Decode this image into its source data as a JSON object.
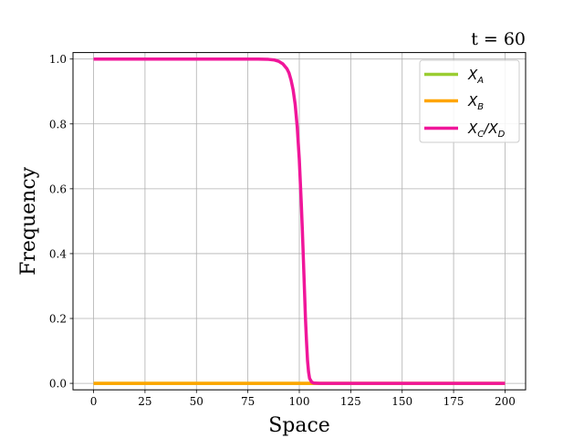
{
  "chart_data": {
    "type": "line",
    "title": "t = 60",
    "xlabel": "Space",
    "ylabel": "Frequency",
    "xlim": [
      -10,
      210
    ],
    "ylim": [
      -0.02,
      1.02
    ],
    "xticks": [
      0,
      25,
      50,
      75,
      100,
      125,
      150,
      175,
      200
    ],
    "yticks": [
      0.0,
      0.2,
      0.4,
      0.6,
      0.8,
      1.0
    ],
    "xtick_labels": [
      "0",
      "25",
      "50",
      "75",
      "100",
      "125",
      "150",
      "175",
      "200"
    ],
    "ytick_labels": [
      "0.0",
      "0.2",
      "0.4",
      "0.6",
      "0.8",
      "1.0"
    ],
    "grid": true,
    "legend_position": "top-right",
    "series": [
      {
        "name": "X_A",
        "legend_main": "X",
        "legend_sub": "A",
        "color": "#9ACD32",
        "x": [
          0,
          200
        ],
        "y": [
          0.0,
          0.0
        ]
      },
      {
        "name": "X_B",
        "legend_main": "X",
        "legend_sub": "B",
        "color": "#FFA500",
        "x": [
          0,
          200
        ],
        "y": [
          0.0,
          0.0
        ]
      },
      {
        "name": "X_C/X_D",
        "legend_main": "X",
        "legend_sub": "C",
        "legend_main2": "/X",
        "legend_sub2": "D",
        "color": "#F0169A",
        "x": [
          0,
          80,
          85,
          88,
          90,
          92,
          94,
          95,
          96,
          97,
          98,
          99,
          100,
          101,
          101.5,
          102,
          102.5,
          103,
          103.5,
          104,
          104.5,
          105,
          106,
          107,
          110,
          120,
          200
        ],
        "y": [
          1.0,
          1.0,
          0.999,
          0.997,
          0.993,
          0.985,
          0.97,
          0.957,
          0.935,
          0.905,
          0.86,
          0.79,
          0.69,
          0.55,
          0.47,
          0.38,
          0.29,
          0.2,
          0.13,
          0.07,
          0.035,
          0.015,
          0.004,
          0.001,
          0.0,
          0.0,
          0.0
        ]
      }
    ]
  }
}
